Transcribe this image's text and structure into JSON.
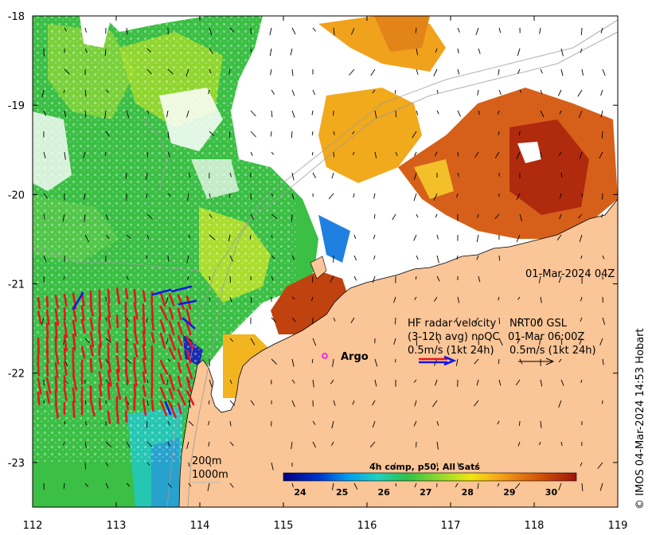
{
  "map": {
    "x_ticks": [
      "112",
      "113",
      "114",
      "115",
      "116",
      "117",
      "118",
      "119"
    ],
    "y_ticks": [
      "-18",
      "-19",
      "-20",
      "-21",
      "-22",
      "-23"
    ],
    "lon_range": [
      112,
      119
    ],
    "lat_range": [
      -23.5,
      -18
    ]
  },
  "annotations": {
    "timestamp": "01-Mar-2024 04Z",
    "radar_line1": "HF radar velocity",
    "radar_line2": "(3-12h avg) noQC",
    "radar_line3": "0.5m/s (1kt 24h)",
    "nrt_line1": "NRT00 GSL",
    "nrt_line2": "01-Mar 06:00Z",
    "nrt_line3": "0.5m/s (1kt 24h)",
    "argo_label": "Argo",
    "depth_200": "200m",
    "depth_1000": "1000m",
    "credit": "© IMOS 04-Mar-2024 14:53 Hobart"
  },
  "colorbar": {
    "title": "4h comp, p50, All Sats",
    "ticks": [
      "24",
      "25",
      "26",
      "27",
      "28",
      "29",
      "30"
    ],
    "range": [
      23.6,
      30.6
    ]
  },
  "colors": {
    "land": "#fac597",
    "radar_arrow": "#e8141e",
    "ref_arrow_blue": "#1515e6",
    "argo_marker": "#ff00ff"
  }
}
